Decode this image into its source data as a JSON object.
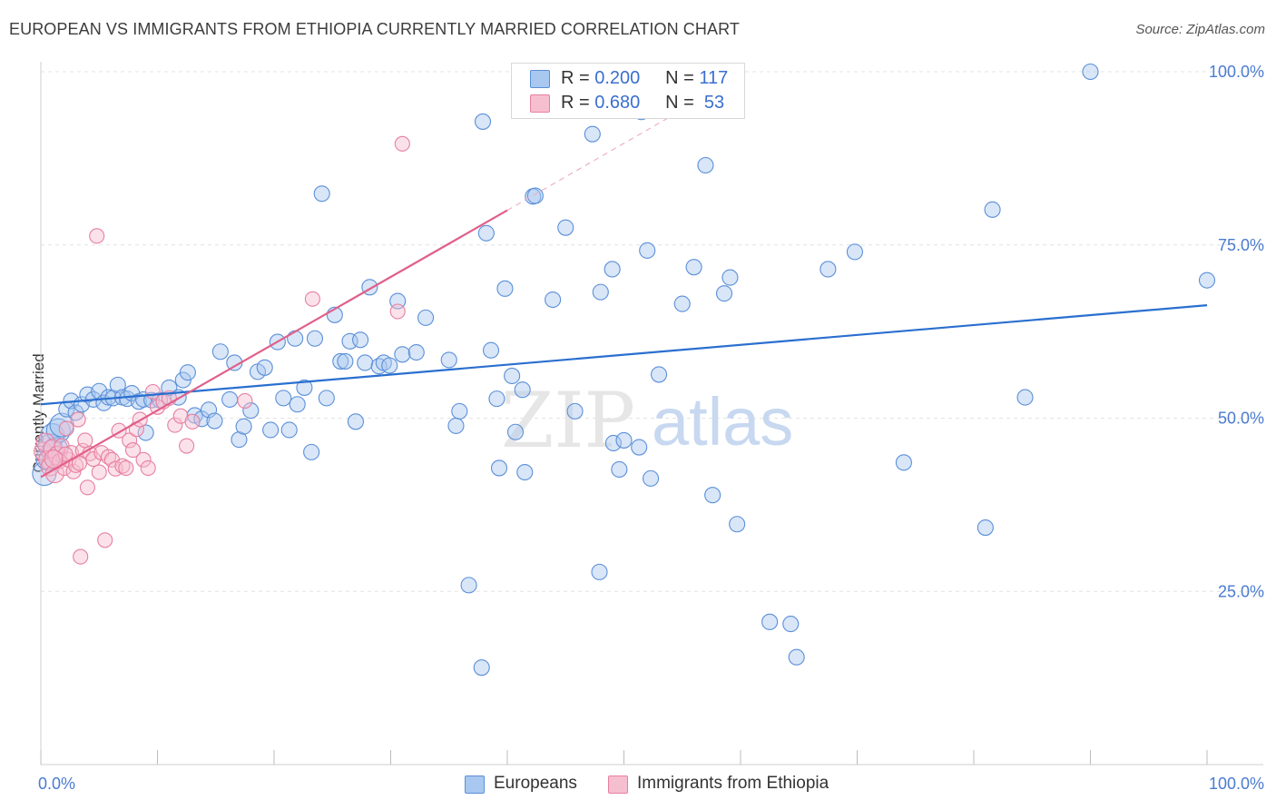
{
  "title": "EUROPEAN VS IMMIGRANTS FROM ETHIOPIA CURRENTLY MARRIED CORRELATION CHART",
  "source": "Source: ZipAtlas.com",
  "watermark": {
    "zip": "ZIP",
    "atlas": "atlas"
  },
  "colors": {
    "blue_fill": "#a9c8f0",
    "blue_stroke": "#5b8fd8",
    "blue_line": "#2a6fcf",
    "pink_fill": "#f6bfd0",
    "pink_stroke": "#e77fa0",
    "pink_line": "#e0608a",
    "axis_text": "#4a7bd0",
    "grid": "#e3e3e3"
  },
  "legend": {
    "rows": [
      {
        "r_label": "R =",
        "r_value": "0.200",
        "n_label": "N =",
        "n_value": "117",
        "color": "blue"
      },
      {
        "r_label": "R =",
        "r_value": "0.680",
        "n_label": "N =",
        "n_value": "53",
        "color": "pink"
      }
    ]
  },
  "bottom_legend": [
    "Europeans",
    "Immigrants from Ethiopia"
  ],
  "chart_data": {
    "type": "scatter",
    "title": "EUROPEAN VS IMMIGRANTS FROM ETHIOPIA CURRENTLY MARRIED CORRELATION CHART",
    "xlabel": "",
    "ylabel": "Currently Married",
    "xlim": [
      0,
      100
    ],
    "ylim": [
      0,
      100
    ],
    "x_tick_labels": [
      "0.0%",
      "100.0%"
    ],
    "y_tick_labels": [
      "25.0%",
      "50.0%",
      "75.0%",
      "100.0%"
    ],
    "y_ticks": [
      25,
      50,
      75,
      100
    ],
    "grid": true,
    "legend_position": "top-center",
    "series": [
      {
        "name": "Europeans",
        "color": "blue",
        "trend": {
          "x": [
            0,
            100
          ],
          "y": [
            52.0,
            66.3
          ]
        },
        "points": [
          [
            0.3,
            42.0
          ],
          [
            0.6,
            44.2
          ],
          [
            0.8,
            46.0
          ],
          [
            1.0,
            47.5
          ],
          [
            1.3,
            45.5
          ],
          [
            1.5,
            48.2
          ],
          [
            1.8,
            49.0
          ],
          [
            2.2,
            51.3
          ],
          [
            2.6,
            52.5
          ],
          [
            3.0,
            50.8
          ],
          [
            3.5,
            52.0
          ],
          [
            4.0,
            53.4
          ],
          [
            4.5,
            52.7
          ],
          [
            5.0,
            53.9
          ],
          [
            5.4,
            52.2
          ],
          [
            5.8,
            53.0
          ],
          [
            6.2,
            52.9
          ],
          [
            6.6,
            54.8
          ],
          [
            7.0,
            53.0
          ],
          [
            7.4,
            52.8
          ],
          [
            7.8,
            53.6
          ],
          [
            8.4,
            52.4
          ],
          [
            8.8,
            52.7
          ],
          [
            9.0,
            47.9
          ],
          [
            9.5,
            52.6
          ],
          [
            10.2,
            52.6
          ],
          [
            11.0,
            54.4
          ],
          [
            11.8,
            53.0
          ],
          [
            12.2,
            55.5
          ],
          [
            12.6,
            56.6
          ],
          [
            13.2,
            50.4
          ],
          [
            13.8,
            49.9
          ],
          [
            14.4,
            51.2
          ],
          [
            14.9,
            49.6
          ],
          [
            15.4,
            59.6
          ],
          [
            16.2,
            52.7
          ],
          [
            16.6,
            58.0
          ],
          [
            17.0,
            46.9
          ],
          [
            17.4,
            48.8
          ],
          [
            18.0,
            51.1
          ],
          [
            18.6,
            56.7
          ],
          [
            19.2,
            57.3
          ],
          [
            19.7,
            48.3
          ],
          [
            20.3,
            61.0
          ],
          [
            20.8,
            52.9
          ],
          [
            21.3,
            48.3
          ],
          [
            21.8,
            61.5
          ],
          [
            22.0,
            52.0
          ],
          [
            22.6,
            54.4
          ],
          [
            23.2,
            45.1
          ],
          [
            23.5,
            61.5
          ],
          [
            24.1,
            82.4
          ],
          [
            24.5,
            52.9
          ],
          [
            25.2,
            64.9
          ],
          [
            25.7,
            58.2
          ],
          [
            26.1,
            58.2
          ],
          [
            26.5,
            61.1
          ],
          [
            27.0,
            49.5
          ],
          [
            27.4,
            61.3
          ],
          [
            27.8,
            58.0
          ],
          [
            28.2,
            68.9
          ],
          [
            29.0,
            57.5
          ],
          [
            29.4,
            58.0
          ],
          [
            29.9,
            57.6
          ],
          [
            30.6,
            66.9
          ],
          [
            31.0,
            59.2
          ],
          [
            32.2,
            59.5
          ],
          [
            33.0,
            64.5
          ],
          [
            35.0,
            58.4
          ],
          [
            35.6,
            48.9
          ],
          [
            35.9,
            51.0
          ],
          [
            36.7,
            25.9
          ],
          [
            37.8,
            14.0
          ],
          [
            37.9,
            92.8
          ],
          [
            38.2,
            76.7
          ],
          [
            38.6,
            59.8
          ],
          [
            39.1,
            52.8
          ],
          [
            39.3,
            42.8
          ],
          [
            39.8,
            68.7
          ],
          [
            40.4,
            56.1
          ],
          [
            40.7,
            48.0
          ],
          [
            41.3,
            54.1
          ],
          [
            41.5,
            42.2
          ],
          [
            42.2,
            82.0
          ],
          [
            42.4,
            82.1
          ],
          [
            43.9,
            67.1
          ],
          [
            45.0,
            77.5
          ],
          [
            45.8,
            51.0
          ],
          [
            47.3,
            91.0
          ],
          [
            47.9,
            27.8
          ],
          [
            48.0,
            68.2
          ],
          [
            49.0,
            71.5
          ],
          [
            49.1,
            46.4
          ],
          [
            49.6,
            42.6
          ],
          [
            50.0,
            46.8
          ],
          [
            51.3,
            45.8
          ],
          [
            51.5,
            94.2
          ],
          [
            52.0,
            74.2
          ],
          [
            52.3,
            41.3
          ],
          [
            53.0,
            56.3
          ],
          [
            55.0,
            66.5
          ],
          [
            56.0,
            71.8
          ],
          [
            57.0,
            86.5
          ],
          [
            57.6,
            38.9
          ],
          [
            58.6,
            68.0
          ],
          [
            59.1,
            70.3
          ],
          [
            59.7,
            34.7
          ],
          [
            62.5,
            20.6
          ],
          [
            64.3,
            20.3
          ],
          [
            64.8,
            15.5
          ],
          [
            67.5,
            71.5
          ],
          [
            69.8,
            74.0
          ],
          [
            74.0,
            43.6
          ],
          [
            81.0,
            34.2
          ],
          [
            81.6,
            80.1
          ],
          [
            84.4,
            53.0
          ],
          [
            90.0,
            100.0
          ],
          [
            100.0,
            69.9
          ]
        ]
      },
      {
        "name": "Immigrants from Ethiopia",
        "color": "pink",
        "trend": {
          "x": [
            0,
            40
          ],
          "y": [
            41.5,
            80.0
          ]
        },
        "trend_dashed": {
          "x": [
            40,
            55
          ],
          "y": [
            80.0,
            94.5
          ]
        },
        "points": [
          [
            0.2,
            45.2
          ],
          [
            0.4,
            46.5
          ],
          [
            0.6,
            44.0
          ],
          [
            0.8,
            43.0
          ],
          [
            1.0,
            45.6
          ],
          [
            1.2,
            42.0
          ],
          [
            1.4,
            44.6
          ],
          [
            1.6,
            43.8
          ],
          [
            1.8,
            46.0
          ],
          [
            2.0,
            42.8
          ],
          [
            2.2,
            48.5
          ],
          [
            2.4,
            44.0
          ],
          [
            2.6,
            45.0
          ],
          [
            2.8,
            42.3
          ],
          [
            3.0,
            43.2
          ],
          [
            3.2,
            49.8
          ],
          [
            3.4,
            30.0
          ],
          [
            3.6,
            45.3
          ],
          [
            3.8,
            46.8
          ],
          [
            4.0,
            40.0
          ],
          [
            4.2,
            44.9
          ],
          [
            4.5,
            44.1
          ],
          [
            4.8,
            76.3
          ],
          [
            5.0,
            42.2
          ],
          [
            5.2,
            45.0
          ],
          [
            5.5,
            32.4
          ],
          [
            5.8,
            44.4
          ],
          [
            6.1,
            44.0
          ],
          [
            6.4,
            42.7
          ],
          [
            6.7,
            48.2
          ],
          [
            7.0,
            43.1
          ],
          [
            7.3,
            42.8
          ],
          [
            7.6,
            46.8
          ],
          [
            7.9,
            45.4
          ],
          [
            8.2,
            48.4
          ],
          [
            8.5,
            49.8
          ],
          [
            8.8,
            44.0
          ],
          [
            9.2,
            42.8
          ],
          [
            9.6,
            53.8
          ],
          [
            10.0,
            51.6
          ],
          [
            10.5,
            52.4
          ],
          [
            11.0,
            52.9
          ],
          [
            11.5,
            49.0
          ],
          [
            12.0,
            50.3
          ],
          [
            12.5,
            46.0
          ],
          [
            13.0,
            49.5
          ],
          [
            17.5,
            52.5
          ],
          [
            23.3,
            67.2
          ],
          [
            30.6,
            65.4
          ],
          [
            31.0,
            89.6
          ],
          [
            3.3,
            43.5
          ],
          [
            2.1,
            44.8
          ],
          [
            1.1,
            44.1
          ]
        ]
      }
    ]
  }
}
